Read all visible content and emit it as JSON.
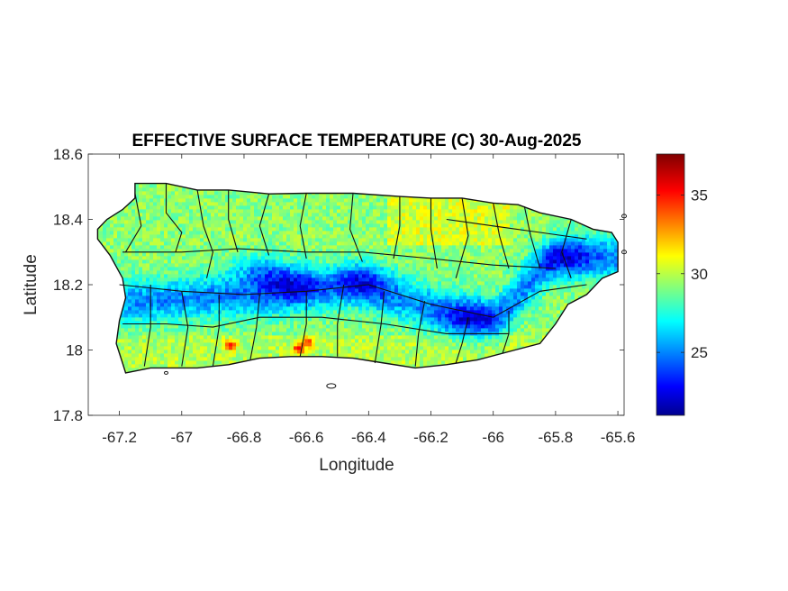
{
  "chart_data": {
    "type": "heatmap",
    "title": "EFFECTIVE SURFACE TEMPERATURE (C) 30-Aug-2025",
    "xlabel": "Longitude",
    "ylabel": "Latitude",
    "xlim": [
      -67.3,
      -65.58
    ],
    "ylim": [
      17.8,
      18.6
    ],
    "x_ticks": [
      -67.2,
      -67,
      -66.8,
      -66.6,
      -66.4,
      -66.2,
      -66,
      -65.8,
      -65.6
    ],
    "x_tick_labels": [
      "-67.2",
      "-67",
      "-66.8",
      "-66.6",
      "-66.4",
      "-66.2",
      "-66",
      "-65.8",
      "-65.6"
    ],
    "y_ticks": [
      17.8,
      18,
      18.2,
      18.4,
      18.6
    ],
    "y_tick_labels": [
      "17.8",
      "18",
      "18.2",
      "18.4",
      "18.6"
    ],
    "colorbar": {
      "colormap": "jet",
      "range": [
        21,
        37.6
      ],
      "ticks": [
        25,
        30,
        35
      ],
      "tick_labels": [
        "25",
        "30",
        "35"
      ]
    },
    "features": {
      "cool_axis": [
        [
          -67.1,
          18.155
        ],
        [
          -66.9,
          18.17
        ],
        [
          -66.75,
          18.17
        ],
        [
          -66.6,
          18.185
        ],
        [
          -66.45,
          18.2
        ],
        [
          -66.3,
          18.16
        ],
        [
          -66.15,
          18.12
        ],
        [
          -66.0,
          18.1
        ],
        [
          -65.9,
          18.2
        ],
        [
          -65.8,
          18.29
        ]
      ],
      "cool_center": [
        [
          -66.75,
          18.25
        ],
        [
          -66.65,
          18.21
        ],
        [
          -66.42,
          18.22
        ],
        [
          -66.08,
          18.1
        ],
        [
          -65.78,
          18.29
        ]
      ],
      "hot_spots": [
        [
          -66.63,
          18.01
        ],
        [
          -66.85,
          18.02
        ],
        [
          -66.6,
          18.03
        ]
      ],
      "typical_range": [
        26,
        31
      ]
    }
  }
}
